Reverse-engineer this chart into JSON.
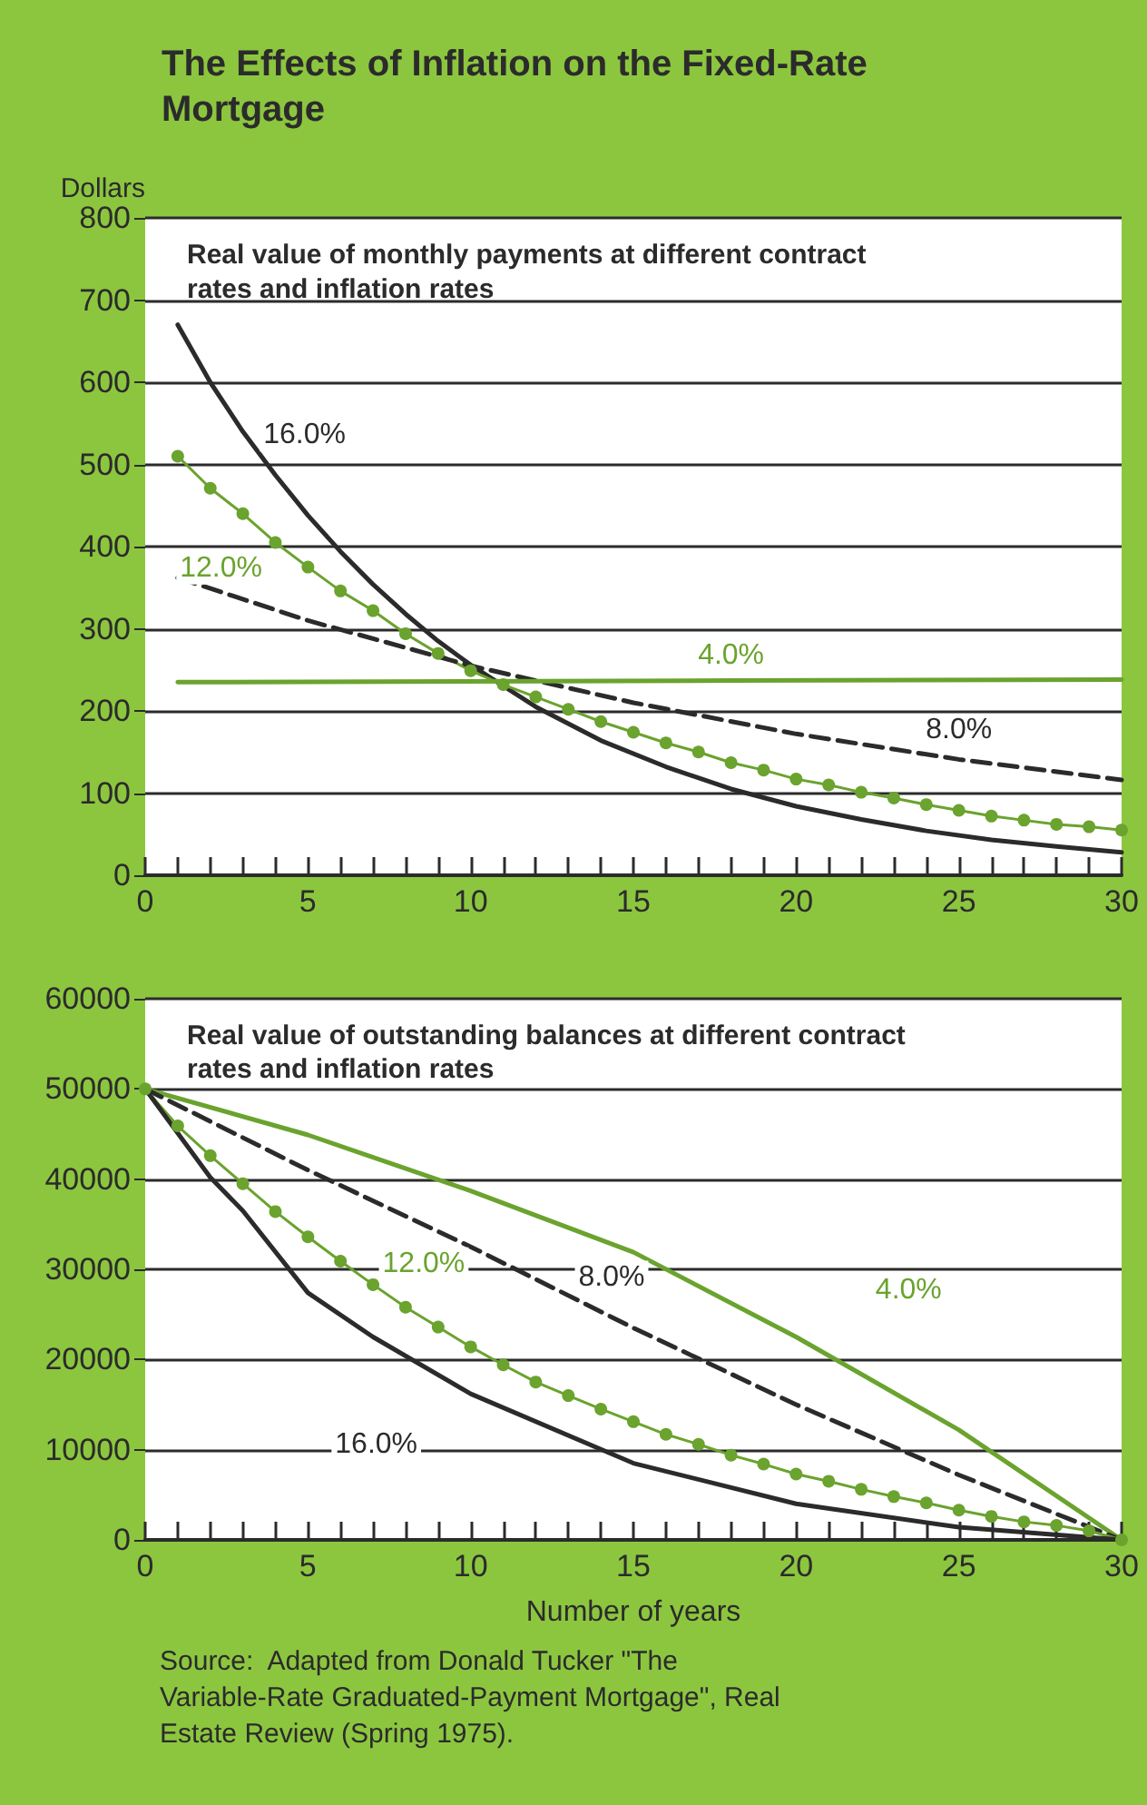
{
  "chart_data": [
    {
      "type": "line",
      "title": "The Effects of Inflation on the Fixed-Rate Mortgage",
      "subtitle": "Real value of monthly payments at different contract rates and inflation rates",
      "ylabel": "Dollars",
      "xlim": [
        0,
        30
      ],
      "xticks": [
        0,
        {
          "value": 1,
          "label": null
        },
        {
          "value": 2,
          "label": null
        },
        {
          "value": 3,
          "label": null
        },
        {
          "value": 4,
          "label": null
        },
        5,
        {
          "value": 6,
          "label": null
        },
        {
          "value": 7,
          "label": null
        },
        {
          "value": 8,
          "label": null
        },
        {
          "value": 9,
          "label": null
        },
        10,
        {
          "value": 11,
          "label": null
        },
        {
          "value": 12,
          "label": null
        },
        {
          "value": 13,
          "label": null
        },
        {
          "value": 14,
          "label": null
        },
        15,
        {
          "value": 16,
          "label": null
        },
        {
          "value": 17,
          "label": null
        },
        {
          "value": 18,
          "label": null
        },
        {
          "value": 19,
          "label": null
        },
        20,
        {
          "value": 21,
          "label": null
        },
        {
          "value": 22,
          "label": null
        },
        {
          "value": 23,
          "label": null
        },
        {
          "value": 24,
          "label": null
        },
        25,
        {
          "value": 26,
          "label": null
        },
        {
          "value": 27,
          "label": null
        },
        {
          "value": 28,
          "label": null
        },
        {
          "value": 29,
          "label": null
        },
        30
      ],
      "ylim": [
        0,
        800
      ],
      "yticks": [
        0,
        100,
        200,
        300,
        400,
        500,
        600,
        700,
        800
      ],
      "grid": "y",
      "series": [
        {
          "name": "16.0%",
          "color": "#2b2b2b",
          "marker": "none",
          "line_style": "solid",
          "x": [
            1,
            2,
            3,
            4,
            5,
            6,
            7,
            8,
            9,
            10,
            12,
            14,
            16,
            18,
            20,
            22,
            24,
            26,
            28,
            30
          ],
          "values": [
            670,
            600,
            540,
            487,
            438,
            394,
            354,
            318,
            285,
            256,
            205,
            164,
            132,
            105,
            84,
            68,
            54,
            43,
            35,
            28
          ]
        },
        {
          "name": "12.0%",
          "color": "#6aa32e",
          "marker": "circle",
          "line_style": "solid",
          "x": [
            1,
            2,
            3,
            4,
            5,
            6,
            7,
            8,
            9,
            10,
            11,
            12,
            13,
            14,
            15,
            16,
            17,
            18,
            19,
            20,
            21,
            22,
            23,
            24,
            25,
            26,
            27,
            28,
            29,
            30
          ],
          "values": [
            510,
            471,
            440,
            405,
            375,
            346,
            322,
            294,
            270,
            249,
            232,
            217,
            202,
            187,
            174,
            161,
            150,
            137,
            128,
            117,
            110,
            101,
            94,
            86,
            79,
            72,
            67,
            62,
            59,
            55
          ]
        },
        {
          "name": "8.0%",
          "color": "#2b2b2b",
          "marker": "none",
          "line_style": "dashed",
          "x": [
            1,
            5,
            10,
            15,
            20,
            25,
            30
          ],
          "values": [
            362,
            310,
            255,
            210,
            172,
            141,
            116
          ]
        },
        {
          "name": "4.0%",
          "color": "#6aa32e",
          "marker": "none",
          "line_style": "solid",
          "x": [
            1,
            18,
            30
          ],
          "values": [
            235,
            237,
            238
          ]
        }
      ]
    },
    {
      "type": "line",
      "title": "Real value of outstanding balances at different contract rates and inflation rates",
      "xlabel": "Number of years",
      "xlim": [
        0,
        30
      ],
      "xticks": [
        0,
        {
          "value": 1,
          "label": null
        },
        {
          "value": 2,
          "label": null
        },
        {
          "value": 3,
          "label": null
        },
        {
          "value": 4,
          "label": null
        },
        5,
        {
          "value": 6,
          "label": null
        },
        {
          "value": 7,
          "label": null
        },
        {
          "value": 8,
          "label": null
        },
        {
          "value": 9,
          "label": null
        },
        10,
        {
          "value": 11,
          "label": null
        },
        {
          "value": 12,
          "label": null
        },
        {
          "value": 13,
          "label": null
        },
        {
          "value": 14,
          "label": null
        },
        15,
        {
          "value": 16,
          "label": null
        },
        {
          "value": 17,
          "label": null
        },
        {
          "value": 18,
          "label": null
        },
        {
          "value": 19,
          "label": null
        },
        20,
        {
          "value": 21,
          "label": null
        },
        {
          "value": 22,
          "label": null
        },
        {
          "value": 23,
          "label": null
        },
        {
          "value": 24,
          "label": null
        },
        25,
        {
          "value": 26,
          "label": null
        },
        {
          "value": 27,
          "label": null
        },
        {
          "value": 28,
          "label": null
        },
        {
          "value": 29,
          "label": null
        },
        30
      ],
      "ylim": [
        0,
        60000
      ],
      "yticks": [
        0,
        10000,
        20000,
        30000,
        40000,
        50000,
        60000
      ],
      "grid": "y",
      "series": [
        {
          "name": "4.0%",
          "color": "#6aa32e",
          "marker": "none",
          "line_style": "solid",
          "x": [
            0,
            5,
            10,
            15,
            20,
            25,
            30
          ],
          "values": [
            50000,
            44900,
            38700,
            31900,
            22500,
            12200,
            0
          ]
        },
        {
          "name": "8.0%",
          "color": "#2b2b2b",
          "marker": "none",
          "line_style": "dashed",
          "x": [
            0,
            5,
            10,
            15,
            20,
            25,
            30
          ],
          "values": [
            50000,
            41000,
            32500,
            23500,
            15000,
            7200,
            0
          ]
        },
        {
          "name": "12.0%",
          "color": "#6aa32e",
          "marker": "circle",
          "line_style": "solid",
          "x": [
            0,
            1,
            2,
            3,
            4,
            5,
            6,
            7,
            8,
            9,
            10,
            11,
            12,
            13,
            14,
            15,
            16,
            17,
            18,
            19,
            20,
            21,
            22,
            23,
            24,
            25,
            26,
            27,
            28,
            29,
            30
          ],
          "values": [
            50000,
            45900,
            42600,
            39500,
            36400,
            33600,
            30900,
            28300,
            25800,
            23600,
            21400,
            19400,
            17500,
            16000,
            14500,
            13100,
            11700,
            10600,
            9400,
            8400,
            7300,
            6500,
            5600,
            4800,
            4100,
            3300,
            2600,
            2000,
            1600,
            1000,
            0
          ]
        },
        {
          "name": "16.0%",
          "color": "#2b2b2b",
          "marker": "none",
          "line_style": "solid",
          "x": [
            0,
            2,
            3,
            5,
            7,
            10,
            15,
            20,
            25,
            30
          ],
          "values": [
            50000,
            40200,
            36500,
            27400,
            22500,
            16200,
            8500,
            4000,
            1400,
            0
          ]
        }
      ],
      "annotations": [
        "Source:  Adapted from Donald Tucker \"The Variable-Rate Graduated-Payment Mortgage\", Real Estate Review (Spring 1975)."
      ]
    }
  ]
}
